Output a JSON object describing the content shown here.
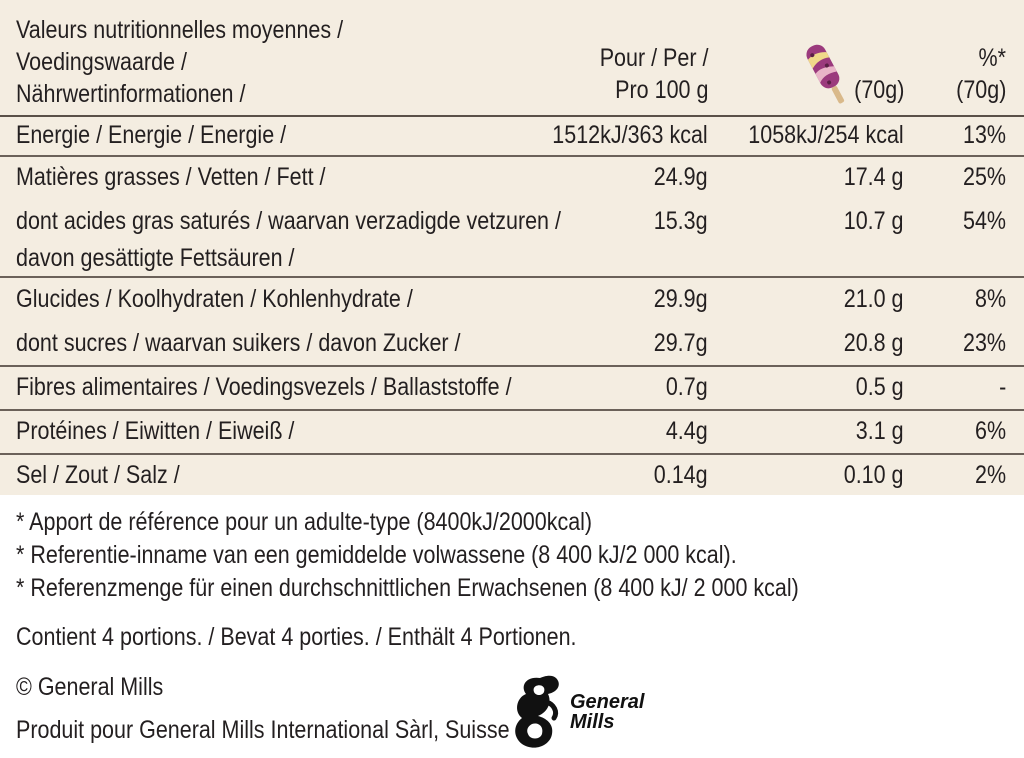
{
  "header": {
    "title_lines": [
      "Valeurs nutritionnelles moyennes /",
      "Voedingswaarde /",
      "Nährwertinformationen /"
    ],
    "col_per100_lines": [
      "Pour / Per /",
      "Pro 100 g"
    ],
    "col_portion": "(70g)",
    "col_pct_lines": [
      "%*",
      "(70g)"
    ],
    "portion_icon": "ice-cream-bar-icon"
  },
  "rows": [
    {
      "labels": [
        "Energie / Energie / Energie /"
      ],
      "per100": "1512kJ/363 kcal",
      "portion": "1058kJ/254 kcal",
      "pct": "13%"
    },
    {
      "labels": [
        "Matières grasses / Vetten / Fett /"
      ],
      "per100": "24.9g",
      "portion": "17.4 g",
      "pct": "25%"
    },
    {
      "labels": [
        "dont acides gras saturés / waarvan verzadigde vetzuren /",
        "davon gesättigte Fettsäuren /"
      ],
      "per100": "15.3g",
      "portion": "10.7 g",
      "pct": "54%"
    },
    {
      "labels": [
        "Glucides / Koolhydraten / Kohlenhydrate /"
      ],
      "per100": "29.9g",
      "portion": "21.0 g",
      "pct": "8%"
    },
    {
      "labels": [
        "dont sucres / waarvan suikers / davon Zucker /"
      ],
      "per100": "29.7g",
      "portion": "20.8 g",
      "pct": "23%"
    },
    {
      "labels": [
        "Fibres alimentaires / Voedingsvezels / Ballaststoffe /"
      ],
      "per100": "0.7g",
      "portion": "0.5 g",
      "pct": "-"
    },
    {
      "labels": [
        "Protéines / Eiwitten / Eiweiß /"
      ],
      "per100": "4.4g",
      "portion": "3.1 g",
      "pct": "6%"
    },
    {
      "labels": [
        "Sel / Zout / Salz /"
      ],
      "per100": "0.14g",
      "portion": "0.10 g",
      "pct": "2%"
    }
  ],
  "footnotes": [
    "* Apport de référence pour un adulte-type (8400kJ/2000kcal)",
    "* Referentie-inname van een gemiddelde volwassene (8 400 kJ/2 000 kcal).",
    "* Referenzmenge für einen durchschnittlichen Erwachsenen (8 400 kJ/ 2 000 kcal)"
  ],
  "portions": "Contient 4 portions. / Bevat 4 porties. / Enthält 4 Portionen.",
  "copyright": "© General Mills",
  "producer": "Produit pour General Mills International Sàrl, Suisse",
  "logo": {
    "line1": "General",
    "line2": "Mills",
    "icon": "general-mills-g-logo-icon"
  },
  "colors": {
    "panel": "#f4ede1",
    "text": "#231f20",
    "rule": "#6b6159"
  }
}
